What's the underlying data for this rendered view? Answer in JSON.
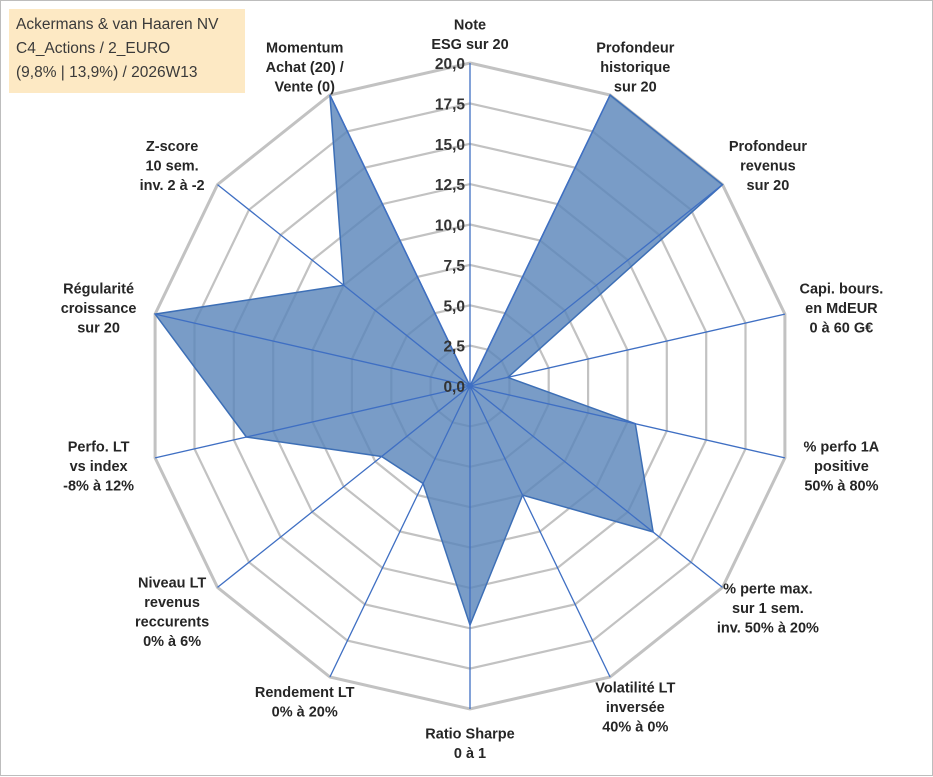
{
  "title_box": {
    "line1": "Ackermans & van Haaren NV",
    "line2": "C4_Actions / 2_EURO",
    "line3": "(9,8% | 13,9%) / 2026W13"
  },
  "colors": {
    "fill": "#5b86bb",
    "stroke": "#3d6fb6",
    "grid": "#c2c2c2",
    "spoke": "#3f6fc3"
  },
  "chart_data": {
    "type": "radar",
    "title": "",
    "rmin": 0,
    "rmax": 20,
    "tick_values": [
      0,
      2.5,
      5,
      7.5,
      10,
      12.5,
      15,
      17.5,
      20
    ],
    "tick_labels": [
      "0,0",
      "2,5",
      "5,0",
      "7,5",
      "10,0",
      "12,5",
      "15,0",
      "17,5",
      "20,0"
    ],
    "axes": [
      {
        "label": [
          "Note",
          "ESG sur 20"
        ],
        "value": 0
      },
      {
        "label": [
          "Profondeur",
          "historique",
          "sur 20"
        ],
        "value": 20
      },
      {
        "label": [
          "Profondeur",
          "revenus",
          "sur 20"
        ],
        "value": 20
      },
      {
        "label": [
          "Capi. bours.",
          "en MdEUR",
          "0 à 60 G€"
        ],
        "value": 2.4
      },
      {
        "label": [
          "% perfo 1A",
          "positive",
          "50% à 80%"
        ],
        "value": 10.5
      },
      {
        "label": [
          "% perte max.",
          "sur 1 sem.",
          "inv. 50% à 20%"
        ],
        "value": 14.5
      },
      {
        "label": [
          "Volatilité LT",
          "inversée",
          "40% à 0%"
        ],
        "value": 7.5
      },
      {
        "label": [
          "Ratio Sharpe",
          "0 à 1"
        ],
        "value": 14.8
      },
      {
        "label": [
          "Rendement LT",
          "0% à 20%"
        ],
        "value": 6.7
      },
      {
        "label": [
          "Niveau LT",
          "revenus",
          "reccurents",
          "0% à 6%"
        ],
        "value": 7.0
      },
      {
        "label": [
          "Perfo. LT",
          "vs index",
          "-8% à 12%"
        ],
        "value": 14.2
      },
      {
        "label": [
          "Régularité",
          "croissance",
          "sur 20"
        ],
        "value": 20
      },
      {
        "label": [
          "Z-score",
          "10 sem.",
          "inv. 2 à -2"
        ],
        "value": 10.0
      },
      {
        "label": [
          "Momentum",
          "Achat (20) /",
          "Vente (0)"
        ],
        "value": 20
      }
    ]
  }
}
